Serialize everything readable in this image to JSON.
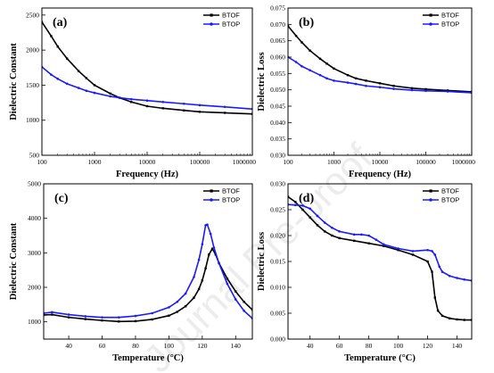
{
  "watermark": "Journal Pre-proof",
  "chart_data": [
    {
      "panel": "(a)",
      "type": "line",
      "xscale": "log",
      "xlabel": "Frequency (Hz)",
      "ylabel": "Dielectric Constant",
      "xlim": [
        100,
        1000000
      ],
      "ylim": [
        500,
        2600
      ],
      "xticks": [
        100,
        1000,
        10000,
        100000,
        1000000
      ],
      "xticklabels": [
        "100",
        "1000",
        "10000",
        "100000",
        "1000000"
      ],
      "yticks": [
        500,
        1000,
        1500,
        2000,
        2500
      ],
      "yticklabels": [
        "500",
        "1000",
        "1500",
        "2000",
        "2500"
      ],
      "legend": "top-right",
      "series": [
        {
          "name": "BTOF",
          "color": "#000000",
          "marker": "square",
          "x": [
            100,
            150,
            200,
            300,
            500,
            700,
            1000,
            2000,
            3000,
            5000,
            10000,
            20000,
            50000,
            100000,
            300000,
            1000000
          ],
          "y": [
            2400,
            2200,
            2050,
            1880,
            1700,
            1600,
            1500,
            1380,
            1320,
            1260,
            1200,
            1170,
            1140,
            1120,
            1105,
            1090
          ]
        },
        {
          "name": "BTOP",
          "color": "#1a1aff",
          "marker": "circle",
          "x": [
            100,
            150,
            200,
            300,
            500,
            700,
            1000,
            2000,
            3000,
            5000,
            10000,
            20000,
            50000,
            100000,
            300000,
            1000000
          ],
          "y": [
            1760,
            1650,
            1590,
            1520,
            1460,
            1420,
            1390,
            1340,
            1320,
            1300,
            1280,
            1260,
            1235,
            1215,
            1190,
            1160
          ]
        }
      ]
    },
    {
      "panel": "(b)",
      "type": "line",
      "xscale": "log",
      "xlabel": "Frequency (Hz)",
      "ylabel": "Dielectric Loss",
      "xlim": [
        100,
        1000000
      ],
      "ylim": [
        0.03,
        0.075
      ],
      "xticks": [
        100,
        1000,
        10000,
        100000,
        1000000
      ],
      "xticklabels": [
        "100",
        "1000",
        "10000",
        "100000",
        "1000000"
      ],
      "yticks": [
        0.03,
        0.035,
        0.04,
        0.045,
        0.05,
        0.055,
        0.06,
        0.065,
        0.07,
        0.075
      ],
      "yticklabels": [
        "0.030",
        "0.035",
        "0.040",
        "0.045",
        "0.050",
        "0.055",
        "0.060",
        "0.065",
        "0.070",
        "0.075"
      ],
      "legend": "top-right",
      "series": [
        {
          "name": "BTOF",
          "color": "#000000",
          "marker": "square",
          "x": [
            100,
            150,
            200,
            300,
            500,
            700,
            1000,
            2000,
            3000,
            5000,
            10000,
            20000,
            50000,
            100000,
            300000,
            1000000
          ],
          "y": [
            0.0695,
            0.0665,
            0.0645,
            0.062,
            0.0595,
            0.058,
            0.0565,
            0.0545,
            0.0535,
            0.0528,
            0.052,
            0.0512,
            0.0505,
            0.0502,
            0.0498,
            0.0494
          ]
        },
        {
          "name": "BTOP",
          "color": "#1a1aff",
          "marker": "circle",
          "x": [
            100,
            150,
            200,
            300,
            500,
            700,
            1000,
            2000,
            3000,
            5000,
            10000,
            20000,
            50000,
            100000,
            300000,
            1000000
          ],
          "y": [
            0.06,
            0.0585,
            0.0572,
            0.056,
            0.0545,
            0.0535,
            0.0528,
            0.0522,
            0.0518,
            0.0512,
            0.0508,
            0.0503,
            0.0499,
            0.0497,
            0.0495,
            0.0491
          ]
        }
      ]
    },
    {
      "panel": "(c)",
      "type": "line",
      "xscale": "linear",
      "xlabel": "Temperature (°C)",
      "ylabel": "Dielectric Constant",
      "xlim": [
        25,
        150
      ],
      "ylim": [
        500,
        5000
      ],
      "xticks": [
        40,
        60,
        80,
        100,
        120,
        140
      ],
      "xticklabels": [
        "40",
        "60",
        "80",
        "100",
        "120",
        "140"
      ],
      "yticks": [
        1000,
        2000,
        3000,
        4000,
        5000
      ],
      "yticklabels": [
        "1000",
        "2000",
        "3000",
        "4000",
        "5000"
      ],
      "legend": "top-right",
      "series": [
        {
          "name": "BTOF",
          "color": "#000000",
          "marker": "square",
          "x": [
            25,
            30,
            40,
            50,
            60,
            70,
            80,
            90,
            100,
            105,
            110,
            115,
            118,
            120,
            122,
            124,
            126,
            128,
            130,
            135,
            140,
            145,
            150
          ],
          "y": [
            1200,
            1210,
            1130,
            1080,
            1040,
            1010,
            1020,
            1070,
            1180,
            1290,
            1450,
            1700,
            1950,
            2200,
            2550,
            2950,
            3120,
            2950,
            2700,
            2250,
            1880,
            1580,
            1350
          ]
        },
        {
          "name": "BTOP",
          "color": "#1a1aff",
          "marker": "circle",
          "x": [
            25,
            30,
            40,
            50,
            60,
            70,
            80,
            90,
            100,
            105,
            110,
            115,
            118,
            120,
            122,
            123,
            125,
            127,
            130,
            135,
            140,
            145,
            150
          ],
          "y": [
            1250,
            1280,
            1210,
            1160,
            1130,
            1130,
            1170,
            1250,
            1420,
            1580,
            1820,
            2300,
            2800,
            3250,
            3800,
            3820,
            3550,
            3150,
            2700,
            2100,
            1650,
            1320,
            1100
          ]
        }
      ]
    },
    {
      "panel": "(d)",
      "type": "line",
      "xscale": "linear",
      "xlabel": "Temperature (°C)",
      "ylabel": "Dielectric Loss",
      "xlim": [
        25,
        150
      ],
      "ylim": [
        0.0,
        0.03
      ],
      "xticks": [
        40,
        60,
        80,
        100,
        120,
        140
      ],
      "xticklabels": [
        "40",
        "60",
        "80",
        "100",
        "120",
        "140"
      ],
      "yticks": [
        0.0,
        0.005,
        0.01,
        0.015,
        0.02,
        0.025,
        0.03
      ],
      "yticklabels": [
        "0.000",
        "0.005",
        "0.010",
        "0.015",
        "0.020",
        "0.025",
        "0.030"
      ],
      "legend": "top-right",
      "series": [
        {
          "name": "BTOF",
          "color": "#000000",
          "marker": "square",
          "x": [
            25,
            30,
            35,
            40,
            45,
            50,
            55,
            60,
            70,
            80,
            90,
            100,
            110,
            120,
            123,
            125,
            127,
            130,
            135,
            140,
            145,
            150
          ],
          "y": [
            0.0275,
            0.0265,
            0.025,
            0.0235,
            0.022,
            0.0208,
            0.02,
            0.0195,
            0.019,
            0.0185,
            0.018,
            0.0172,
            0.0163,
            0.015,
            0.013,
            0.008,
            0.0055,
            0.0045,
            0.004,
            0.0038,
            0.0037,
            0.0037
          ]
        },
        {
          "name": "BTOP",
          "color": "#1a1aff",
          "marker": "circle",
          "x": [
            25,
            30,
            35,
            40,
            45,
            50,
            55,
            60,
            70,
            75,
            80,
            85,
            90,
            100,
            110,
            120,
            123,
            125,
            128,
            130,
            135,
            140,
            145,
            150
          ],
          "y": [
            0.026,
            0.0259,
            0.0258,
            0.0252,
            0.0238,
            0.0225,
            0.0215,
            0.0208,
            0.0202,
            0.0202,
            0.02,
            0.0192,
            0.0183,
            0.0175,
            0.017,
            0.0172,
            0.017,
            0.0163,
            0.014,
            0.013,
            0.0122,
            0.0118,
            0.0115,
            0.0113
          ]
        }
      ]
    }
  ]
}
